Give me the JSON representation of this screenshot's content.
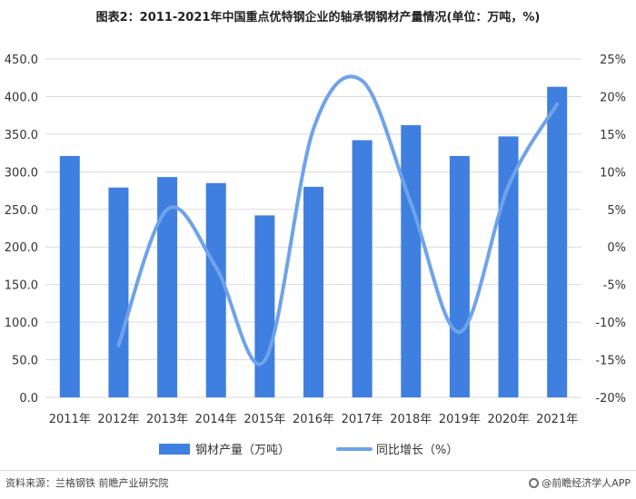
{
  "title": "图表2：2011-2021年中国重点优特钢企业的轴承钢钢材产量情况(单位：万吨，%)",
  "colors": {
    "bar": "#3f7fe0",
    "line": "#6ea3ea",
    "grid": "#d9d9d9"
  },
  "footer": {
    "source": "资料来源：兰格钢铁 前瞻产业研究院",
    "brand": "@前瞻经济学人APP",
    "brand_icon": "brand-logo-icon"
  },
  "chart_data": {
    "type": "bar",
    "categories": [
      "2011年",
      "2012年",
      "2013年",
      "2014年",
      "2015年",
      "2016年",
      "2017年",
      "2018年",
      "2019年",
      "2020年",
      "2021年"
    ],
    "series": [
      {
        "name": "钢材产量（万吨）",
        "type": "bar",
        "axis": "left",
        "values": [
          321,
          279,
          293,
          285,
          242,
          280,
          342,
          362,
          321,
          347,
          413
        ]
      },
      {
        "name": "同比增长（%）",
        "type": "line",
        "axis": "right",
        "smooth": true,
        "values": [
          null,
          -13.1,
          5.0,
          -2.7,
          -15.1,
          15.7,
          22.1,
          5.8,
          -11.3,
          8.1,
          19.0
        ]
      }
    ],
    "y_left": {
      "min": 0,
      "max": 450,
      "step": 50,
      "tick_labels": [
        "0.0",
        "50.0",
        "100.0",
        "150.0",
        "200.0",
        "250.0",
        "300.0",
        "350.0",
        "400.0",
        "450.0"
      ]
    },
    "y_right": {
      "min": -20,
      "max": 25,
      "step": 5,
      "tick_labels": [
        "-20%",
        "-15%",
        "-10%",
        "-5%",
        "0%",
        "5%",
        "10%",
        "15%",
        "20%",
        "25%"
      ]
    },
    "grid": true,
    "legend_position": "bottom"
  }
}
